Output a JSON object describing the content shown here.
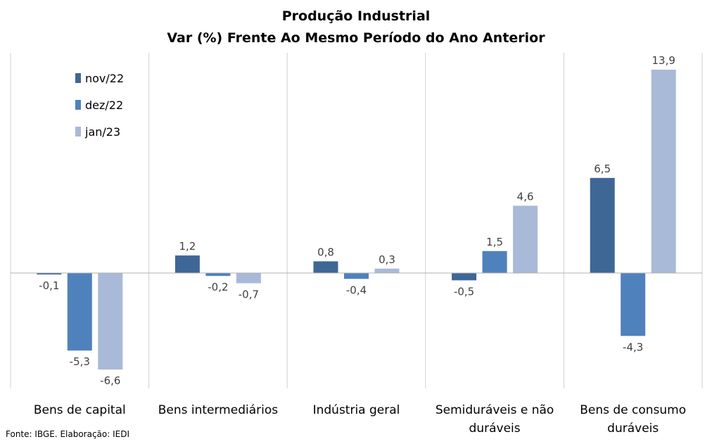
{
  "chart_data": {
    "type": "bar",
    "title": "Produção Industrial",
    "subtitle": "Var (%) Frente Ao Mesmo Período do Ano Anterior",
    "categories": [
      [
        "Bens de capital"
      ],
      [
        "Bens intermediários"
      ],
      [
        "Indústria geral"
      ],
      [
        "Semiduráveis e não",
        "duráveis"
      ],
      [
        "Bens de consumo",
        "duráveis"
      ]
    ],
    "series": [
      {
        "name": "nov/22",
        "color": "#3f6796",
        "values": [
          -0.1,
          1.2,
          0.8,
          -0.5,
          6.5
        ],
        "labels": [
          "-0,1",
          "1,2",
          "0,8",
          "-0,5",
          "6,5"
        ]
      },
      {
        "name": "dez/22",
        "color": "#4f81bd",
        "values": [
          -5.3,
          -0.2,
          -0.4,
          1.5,
          -4.3
        ],
        "labels": [
          "-5,3",
          "-0,2",
          "-0,4",
          "1,5",
          "-4,3"
        ]
      },
      {
        "name": "jan/23",
        "color": "#a9b9d8",
        "values": [
          -6.6,
          -0.7,
          0.3,
          4.6,
          13.9
        ],
        "labels": [
          "-6,6",
          "-0,7",
          "0,3",
          "4,6",
          "13,9"
        ]
      }
    ],
    "legend_position": "top-left"
  },
  "source": "Fonte: IBGE. Elaboração: IEDI"
}
